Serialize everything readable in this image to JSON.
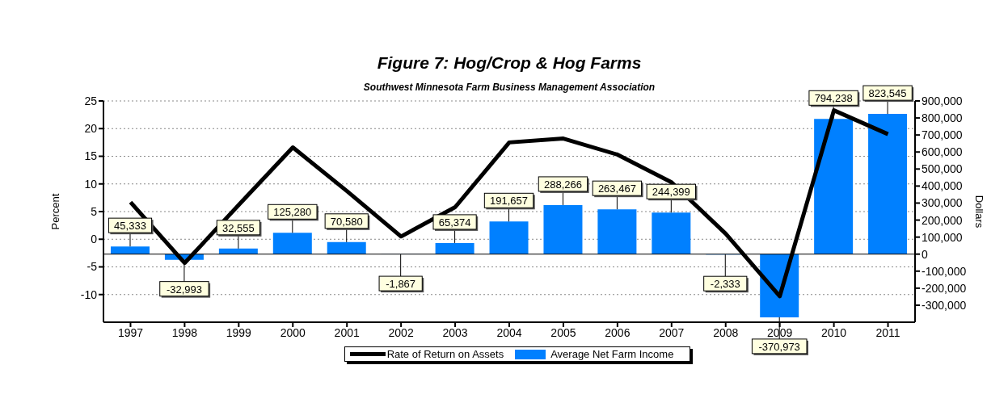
{
  "chart_data": {
    "type": "bar",
    "title": "Figure 7: Hog/Crop & Hog Farms",
    "subtitle": "Southwest Minnesota Farm Business Management Association",
    "ylabel": "Percent",
    "y2label": "Dollars",
    "categories": [
      "1997",
      "1998",
      "1999",
      "2000",
      "2001",
      "2002",
      "2003",
      "2004",
      "2005",
      "2006",
      "2007",
      "2008",
      "2009",
      "2010",
      "2011"
    ],
    "series": [
      {
        "name": "Rate of Return on Assets",
        "type": "line",
        "color": "#000000",
        "values": [
          6.7,
          -4.3,
          6.2,
          16.6,
          8.7,
          0.5,
          5.8,
          17.5,
          18.2,
          15.3,
          10.3,
          1.0,
          -10.3,
          23.3,
          19.0
        ]
      },
      {
        "name": "Average Net Farm Income",
        "axis": "y2",
        "color": "#0080ff",
        "values": [
          45333,
          -32993,
          32555,
          125280,
          70580,
          -1867,
          65374,
          191657,
          288266,
          263467,
          244399,
          -2333,
          -370973,
          794238,
          823545
        ],
        "value_labels": [
          "45,333",
          "-32,993",
          "32,555",
          "125,280",
          "70,580",
          "-1,867",
          "65,374",
          "191,657",
          "288,266",
          "263,467",
          "244,399",
          "-2,333",
          "-370,973",
          "794,238",
          "823,545"
        ]
      }
    ],
    "ylim": [
      -15,
      25
    ],
    "yticks": [
      -10,
      -5,
      0,
      5,
      10,
      15,
      20,
      25
    ],
    "y2lim": [
      -400000,
      900000
    ],
    "y2ticks": [
      {
        "value": -300000,
        "label": "-300,000"
      },
      {
        "value": -200000,
        "label": "-200,000"
      },
      {
        "value": -100000,
        "label": "-100,000"
      },
      0,
      {
        "value": 100000,
        "label": "100,000"
      },
      {
        "value": 200000,
        "label": "200,000"
      },
      {
        "value": 300000,
        "label": "300,000"
      },
      {
        "value": 400000,
        "label": "400,000"
      },
      {
        "value": 500000,
        "label": "500,000"
      },
      {
        "value": 600000,
        "label": "600,000"
      },
      {
        "value": 700000,
        "label": "700,000"
      },
      {
        "value": 800000,
        "label": "800,000"
      },
      {
        "value": 900000,
        "label": "900,000"
      }
    ],
    "ref_lines": [
      {
        "axis": "y2",
        "value": 0,
        "color": "#000000"
      }
    ],
    "grid": "y",
    "legend": "bottom"
  }
}
